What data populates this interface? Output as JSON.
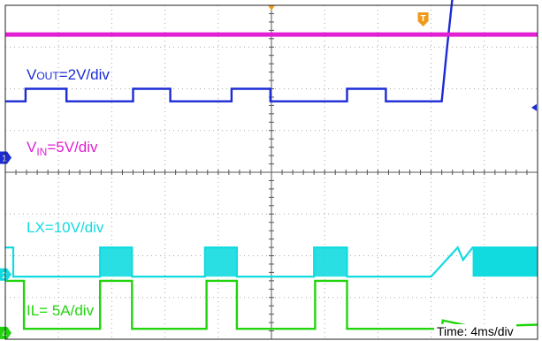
{
  "chart_data": {
    "type": "line",
    "title": "",
    "xlabel": "Time: 4ms/div",
    "time_per_div_ms": 4,
    "x_divisions": 10,
    "y_divisions": 8,
    "grid": true,
    "channels": [
      {
        "id": "1",
        "color": "#1c2bd6",
        "label": {
          "pre": "V",
          "sub": "OUT",
          "post": "=2V/div"
        },
        "scale": "2V/div",
        "marker_div": 0.35,
        "points": [
          [
            0,
            1.7
          ],
          [
            0.38,
            1.7
          ],
          [
            0.38,
            2.0
          ],
          [
            1.15,
            2.0
          ],
          [
            1.15,
            1.7
          ],
          [
            2.4,
            1.7
          ],
          [
            2.4,
            2.0
          ],
          [
            3.1,
            2.0
          ],
          [
            3.1,
            1.7
          ],
          [
            4.25,
            1.7
          ],
          [
            4.25,
            2.0
          ],
          [
            4.98,
            2.0
          ],
          [
            4.98,
            1.7
          ],
          [
            6.42,
            1.7
          ],
          [
            6.42,
            2.0
          ],
          [
            7.15,
            2.0
          ],
          [
            7.15,
            1.7
          ],
          [
            8.2,
            1.7
          ],
          [
            8.3,
            3.0
          ],
          [
            8.52,
            5.6
          ],
          [
            8.7,
            5.95
          ],
          [
            10,
            5.95
          ]
        ]
      },
      {
        "id": "VIN",
        "color": "#e020d2",
        "label": {
          "pre": "V",
          "sub": "IN",
          "post": "=5V/div"
        },
        "scale": "5V/div",
        "marker_div": null,
        "points": [
          [
            0,
            3.3
          ],
          [
            10,
            3.3
          ]
        ]
      },
      {
        "id": "2",
        "color": "#12dbe0",
        "label": {
          "pre": "LX=10V/div",
          "sub": "",
          "post": ""
        },
        "scale": "10V/div",
        "marker_div": -2.45,
        "points": [
          [
            0,
            -1.8
          ],
          [
            0.15,
            -1.8
          ],
          [
            0.15,
            -2.5
          ],
          [
            1.78,
            -2.5
          ],
          [
            1.78,
            -1.8
          ],
          [
            2.38,
            -1.8
          ],
          [
            2.38,
            -2.5
          ],
          [
            3.75,
            -2.5
          ],
          [
            3.75,
            -1.8
          ],
          [
            4.35,
            -1.8
          ],
          [
            4.35,
            -2.5
          ],
          [
            5.8,
            -2.5
          ],
          [
            5.8,
            -1.8
          ],
          [
            6.42,
            -1.8
          ],
          [
            6.42,
            -2.5
          ],
          [
            8.0,
            -2.5
          ],
          [
            8.5,
            -1.8
          ],
          [
            8.6,
            -2.1
          ],
          [
            8.78,
            -1.8
          ],
          [
            10,
            -1.8
          ]
        ]
      },
      {
        "id": "4",
        "color": "#22d40e",
        "label": {
          "pre": "IL= 5A/div",
          "sub": "",
          "post": ""
        },
        "scale": "5A/div",
        "marker_div": -3.85,
        "points": [
          [
            0,
            -2.6
          ],
          [
            0.35,
            -2.6
          ],
          [
            0.35,
            -3.75
          ],
          [
            1.78,
            -3.75
          ],
          [
            1.78,
            -2.6
          ],
          [
            2.38,
            -2.6
          ],
          [
            2.38,
            -3.75
          ],
          [
            3.78,
            -3.75
          ],
          [
            3.78,
            -2.6
          ],
          [
            4.35,
            -2.6
          ],
          [
            4.35,
            -3.75
          ],
          [
            5.82,
            -3.75
          ],
          [
            5.82,
            -2.6
          ],
          [
            6.42,
            -2.6
          ],
          [
            6.42,
            -3.75
          ],
          [
            8.2,
            -3.75
          ],
          [
            8.22,
            -3.55
          ],
          [
            8.78,
            -3.7
          ],
          [
            10,
            -3.65
          ]
        ]
      }
    ],
    "trigger": {
      "label": "T",
      "color": "#f09a1a",
      "x_div": 7.85
    },
    "trigger_level_div": 1.55,
    "top_marker_x_div": 5.0
  }
}
